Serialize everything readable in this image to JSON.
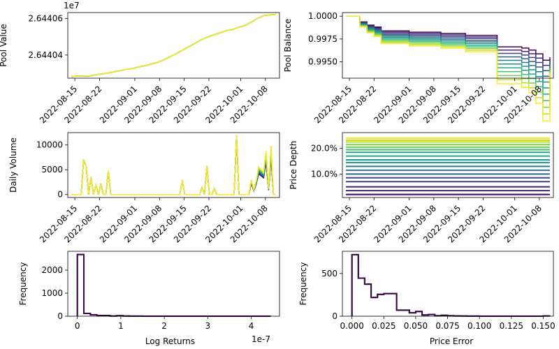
{
  "palette": [
    "#440154",
    "#482576",
    "#414487",
    "#35608d",
    "#2a788e",
    "#21918c",
    "#22a884",
    "#43bf71",
    "#7ad151",
    "#bddf26",
    "#fde725"
  ],
  "chart_data": [
    {
      "type": "line",
      "ylabel": "Pool Value",
      "offset_label": "1e7",
      "x_ticks": [
        "2022-08-15",
        "2022-08-22",
        "2022-09-01",
        "2022-09-08",
        "2022-09-15",
        "2022-09-22",
        "2022-10-01",
        "2022-10-08"
      ],
      "y_ticks": [
        "2.64404",
        "2.64406"
      ],
      "ylim": [
        26440273,
        26440633
      ],
      "x_range": [
        "2022-08-13",
        "2022-10-12"
      ],
      "series_values": [
        26440283,
        26440284,
        26440285,
        26440285,
        26440292,
        26440296,
        26440302,
        26440309,
        26440315,
        26440322,
        26440327,
        26440336,
        26440342,
        26440351,
        26440361,
        26440375,
        26440392,
        26440409,
        26440428,
        26440447,
        26440466,
        26440484,
        26440499,
        26440511,
        26440522,
        26440534,
        26440540,
        26440552,
        26440563,
        26440579,
        26440600,
        26440616,
        26440620,
        26440623
      ]
    },
    {
      "type": "line",
      "ylabel": "Pool Balance",
      "x_ticks": [
        "2022-08-15",
        "2022-08-22",
        "2022-09-01",
        "2022-09-08",
        "2022-09-15",
        "2022-09-22",
        "2022-10-01",
        "2022-10-08"
      ],
      "y_ticks": [
        "1.0000",
        "0.9975",
        "0.9950"
      ],
      "ylim": [
        0.9932,
        1.0004
      ],
      "x_range": [
        "2022-08-13",
        "2022-10-12"
      ],
      "series_note": "11 step series; final values fan from 0.9955 (darkest) to 0.9937 (lightest)",
      "final_values": [
        0.9955,
        0.9953,
        0.9951,
        0.995,
        0.9948,
        0.9946,
        0.9944,
        0.9943,
        0.9941,
        0.9939,
        0.9937
      ]
    },
    {
      "type": "line",
      "ylabel": "Daily Volume",
      "x_ticks": [
        "2022-08-15",
        "2022-08-22",
        "2022-09-01",
        "2022-09-08",
        "2022-09-15",
        "2022-09-22",
        "2022-10-01",
        "2022-10-08"
      ],
      "y_ticks": [
        "0",
        "5000",
        "10000"
      ],
      "ylim": [
        -600,
        12500
      ],
      "x_range": [
        "2022-08-13",
        "2022-10-12"
      ],
      "series_values": [
        0,
        0,
        0,
        0,
        0,
        7000,
        5800,
        0,
        3500,
        0,
        1900,
        0,
        2200,
        0,
        0,
        4800,
        0,
        0,
        0,
        0,
        0,
        0,
        0,
        0,
        0,
        0,
        0,
        0,
        0,
        0,
        0,
        0,
        0,
        0,
        0,
        0,
        0,
        0,
        0,
        0,
        0,
        0,
        0,
        0,
        0,
        2900,
        0,
        0,
        0,
        0,
        0,
        0,
        0,
        1400,
        0,
        5800,
        0,
        0,
        1200,
        0,
        0,
        0,
        0,
        0,
        0,
        0,
        0,
        11900,
        0,
        0,
        0,
        0,
        0,
        3000,
        1000,
        2800,
        5600,
        5000,
        4500,
        8800,
        1200,
        9800,
        0,
        0
      ]
    },
    {
      "type": "line",
      "ylabel": "Price Depth",
      "x_ticks": [
        "2022-08-15",
        "2022-08-22",
        "2022-09-01",
        "2022-09-08",
        "2022-09-15",
        "2022-09-22",
        "2022-10-01",
        "2022-10-08"
      ],
      "y_ticks": [
        "20.0%",
        "10.0%"
      ],
      "ylim": [
        0.008,
        0.262
      ],
      "x_range": [
        "2022-08-13",
        "2022-10-12"
      ],
      "levels": [
        0.02,
        0.035,
        0.05,
        0.07,
        0.085,
        0.1,
        0.115,
        0.13,
        0.145,
        0.155,
        0.17,
        0.185,
        0.195,
        0.205,
        0.215,
        0.225,
        0.232,
        0.24
      ]
    },
    {
      "type": "bar",
      "xlabel": "Log Returns",
      "ylabel": "Frequency",
      "offset_label": "1e-7",
      "x_ticks": [
        "0",
        "1",
        "2",
        "3",
        "4"
      ],
      "y_ticks": [
        "0",
        "1000",
        "2000"
      ],
      "xlim": [
        -2.2e-08,
        4.65e-07
      ],
      "ylim": [
        0,
        2820
      ],
      "bin_edges_e7": [
        0,
        0.15,
        0.3,
        0.45,
        0.6,
        0.75,
        0.9,
        1.05,
        1.2,
        1.35,
        1.5,
        1.65,
        1.8,
        1.95,
        2.1,
        2.25,
        2.4,
        2.55,
        2.7,
        2.85,
        3.0,
        3.15,
        3.3,
        3.45,
        3.6,
        3.75,
        3.9,
        4.05,
        4.2,
        4.35,
        4.45
      ],
      "counts": [
        2680,
        120,
        60,
        30,
        30,
        5,
        20,
        5,
        2,
        2,
        0,
        0,
        0,
        0,
        0,
        0,
        0,
        0,
        0,
        0,
        0,
        0,
        0,
        0,
        0,
        0,
        0,
        0,
        0,
        0
      ]
    },
    {
      "type": "bar",
      "xlabel": "Price Error",
      "ylabel": "Frequency",
      "x_ticks": [
        "0.000",
        "0.025",
        "0.050",
        "0.075",
        "0.100",
        "0.125",
        "0.150"
      ],
      "y_ticks": [
        "0",
        "500"
      ],
      "xlim": [
        -0.0075,
        0.158
      ],
      "ylim": [
        0,
        760
      ],
      "bin_edges": [
        0,
        0.005,
        0.01,
        0.015,
        0.02,
        0.025,
        0.03,
        0.035,
        0.04,
        0.045,
        0.05,
        0.055,
        0.06,
        0.065,
        0.07,
        0.075,
        0.08,
        0.085,
        0.09,
        0.095,
        0.1,
        0.105,
        0.11,
        0.115,
        0.12,
        0.125,
        0.13,
        0.135,
        0.14,
        0.145,
        0.15,
        0.155
      ],
      "counts": [
        720,
        445,
        375,
        220,
        255,
        265,
        265,
        70,
        70,
        40,
        55,
        15,
        20,
        5,
        10,
        5,
        3,
        2,
        1,
        1,
        0,
        0,
        0,
        0,
        0,
        0,
        0,
        0,
        0,
        0,
        3
      ]
    }
  ]
}
